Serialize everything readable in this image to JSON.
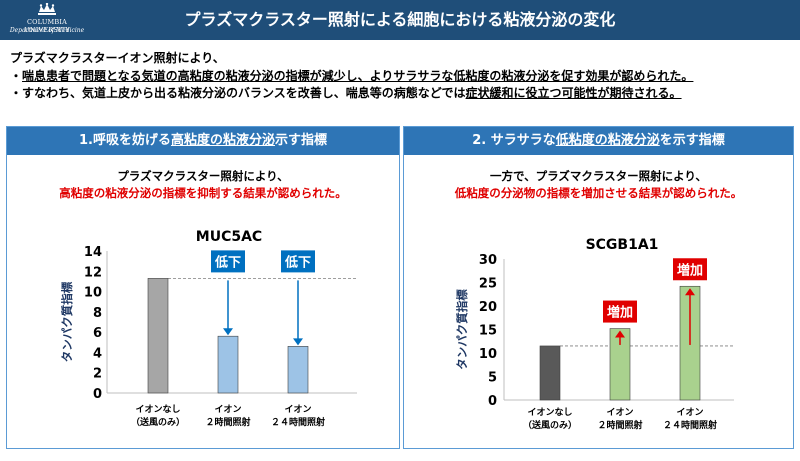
{
  "header": {
    "logo_line1": "COLUMBIA UNIVERSITY",
    "logo_line2": "Department of Medicine",
    "title": "プラズマクラスター照射による細胞における粘液分泌の変化"
  },
  "intro": {
    "line1": "プラズマクラスターイオン照射により、",
    "line2_prefix": "・",
    "line2_underlined": "喘息患者で問題となる気道の高粘度の粘液分泌の指標が減少し、よりサラサラな低粘度の粘液分泌を促す効果が認められた。",
    "line3_prefix": "・すなわち、気道上皮から出る粘液分泌のバランスを改善し、喘息等の病態などでは",
    "line3_underlined": "症状緩和に役立つ可能性が期待される。"
  },
  "left_panel": {
    "header_prefix": "1.呼吸を妨げる",
    "header_underlined": "高粘度の粘液分泌",
    "header_suffix": "示す指標",
    "desc_line1": "プラズマクラスター照射により、",
    "desc_line2": "高粘度の粘液分泌の指標を抑制する結果が認められた。"
  },
  "right_panel": {
    "header_prefix": "2. サラサラな",
    "header_underlined": "低粘度の粘液分泌",
    "header_suffix": "を示す指標",
    "desc_line1": "一方で、プラズマクラスター照射により、",
    "desc_line2": "低粘度の分泌物の指標を増加させる結果が認められた。"
  },
  "chart_data": [
    {
      "type": "bar",
      "title": "MUC5AC",
      "ylabel": "タンパク質指標",
      "ylim": [
        0,
        14
      ],
      "yticks": [
        "0",
        "2",
        "4",
        "6",
        "8",
        "10",
        "12",
        "14"
      ],
      "categories": [
        [
          "イオンなし",
          "（送風のみ）"
        ],
        [
          "イオン",
          "２時間照射"
        ],
        [
          "イオン",
          "２４時間照射"
        ]
      ],
      "values": [
        11.3,
        5.6,
        4.6
      ],
      "colors": [
        "#a6a6a6",
        "#9dc3e6",
        "#9dc3e6"
      ],
      "annotations": [
        "",
        "低下",
        "低下"
      ],
      "annotation_color": "#0070c0",
      "reference_line": 11.3
    },
    {
      "type": "bar",
      "title": "SCGB1A1",
      "ylabel": "タンパク質指標",
      "ylim": [
        0,
        30
      ],
      "yticks": [
        "0",
        "5",
        "10",
        "15",
        "20",
        "25",
        "30"
      ],
      "categories": [
        [
          "イオンなし",
          "（送風のみ）"
        ],
        [
          "イオン",
          "２時間照射"
        ],
        [
          "イオン",
          "２４時間照射"
        ]
      ],
      "values": [
        11.5,
        15.2,
        24.2
      ],
      "colors": [
        "#595959",
        "#a9d18e",
        "#a9d18e"
      ],
      "annotations": [
        "",
        "増加",
        "増加"
      ],
      "annotation_color": "#e00000",
      "reference_line": 11.5
    }
  ]
}
